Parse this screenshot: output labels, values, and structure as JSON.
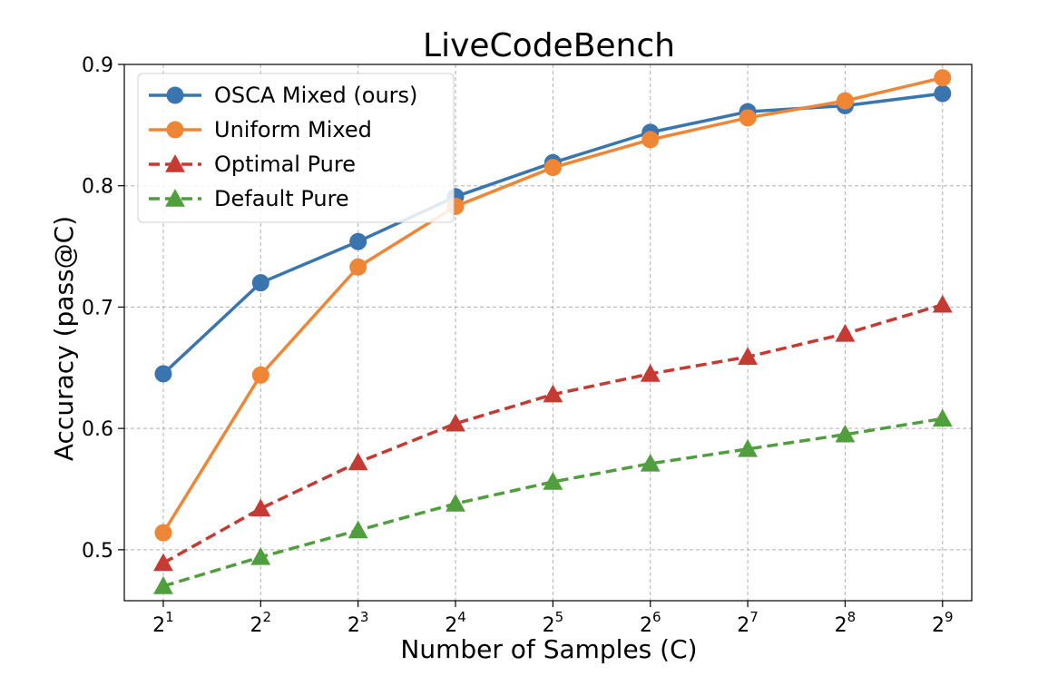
{
  "chart_data": {
    "type": "line",
    "title": "LiveCodeBench",
    "xlabel": "Number of Samples (C)",
    "ylabel": "Accuracy (pass@C)",
    "x_base": "2",
    "x_exponents": [
      1,
      2,
      3,
      4,
      5,
      6,
      7,
      8,
      9
    ],
    "x_ticks": [
      {
        "base": "2",
        "exp": "1"
      },
      {
        "base": "2",
        "exp": "2"
      },
      {
        "base": "2",
        "exp": "3"
      },
      {
        "base": "2",
        "exp": "4"
      },
      {
        "base": "2",
        "exp": "5"
      },
      {
        "base": "2",
        "exp": "6"
      },
      {
        "base": "2",
        "exp": "7"
      },
      {
        "base": "2",
        "exp": "8"
      },
      {
        "base": "2",
        "exp": "9"
      }
    ],
    "y_ticks": [
      "0.5",
      "0.6",
      "0.7",
      "0.8",
      "0.9"
    ],
    "ylim": [
      0.458,
      0.9
    ],
    "xlim": [
      0.6,
      9.3
    ],
    "grid": true,
    "legend_position": "top-left",
    "series": [
      {
        "name": "OSCA Mixed (ours)",
        "color": "#3a75b0",
        "linestyle": "solid",
        "marker": "circle",
        "values": [
          0.645,
          0.72,
          0.754,
          0.791,
          0.819,
          0.844,
          0.861,
          0.866,
          0.876
        ]
      },
      {
        "name": "Uniform Mixed",
        "color": "#ef8636",
        "linestyle": "solid",
        "marker": "circle",
        "values": [
          0.514,
          0.644,
          0.733,
          0.783,
          0.815,
          0.838,
          0.856,
          0.87,
          0.889
        ]
      },
      {
        "name": "Optimal Pure",
        "color": "#c53a32",
        "linestyle": "dashed",
        "marker": "triangle",
        "values": [
          0.489,
          0.534,
          0.572,
          0.604,
          0.628,
          0.645,
          0.659,
          0.678,
          0.702
        ]
      },
      {
        "name": "Default Pure",
        "color": "#519e3e",
        "linestyle": "dashed",
        "marker": "triangle",
        "values": [
          0.47,
          0.494,
          0.516,
          0.538,
          0.556,
          0.571,
          0.583,
          0.595,
          0.608
        ]
      }
    ]
  }
}
